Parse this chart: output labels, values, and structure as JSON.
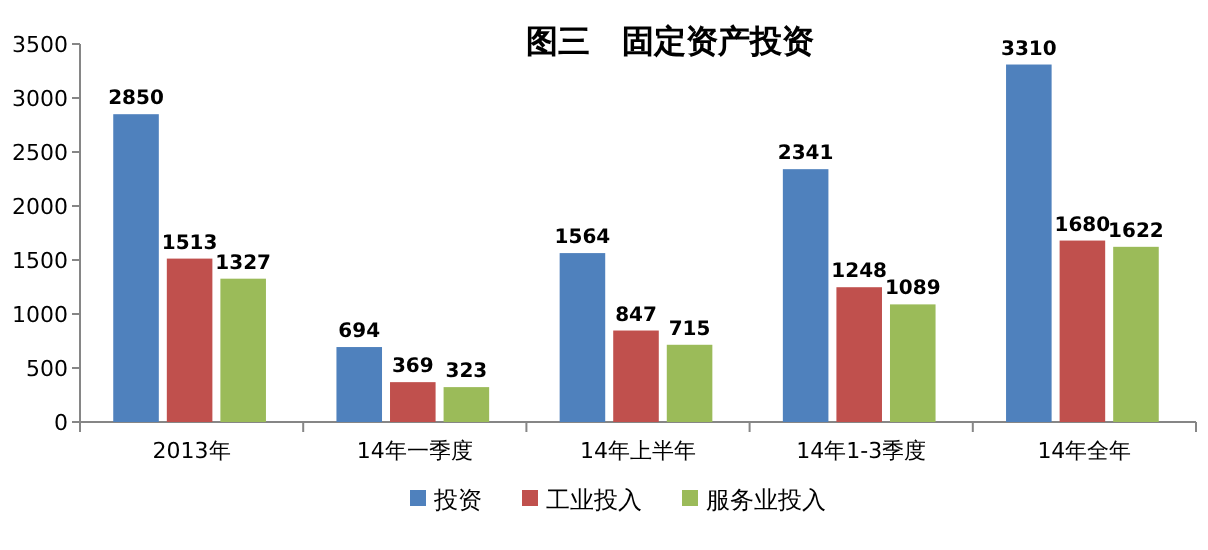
{
  "chart_data": {
    "type": "bar",
    "title": "图三　固定资产投资",
    "categories": [
      "2013年",
      "14年一季度",
      "14年上半年",
      "14年1-3季度",
      "14年全年"
    ],
    "series": [
      {
        "name": "投资",
        "color": "#4f81bd",
        "values": [
          2850,
          694,
          1564,
          2341,
          3310
        ]
      },
      {
        "name": "工业投入",
        "color": "#c0504d",
        "values": [
          1513,
          369,
          847,
          1248,
          1680
        ]
      },
      {
        "name": "服务业投入",
        "color": "#9bbb59",
        "values": [
          1327,
          323,
          715,
          1089,
          1622
        ]
      }
    ],
    "ylim": [
      0,
      3500
    ],
    "yticks": [
      0,
      500,
      1000,
      1500,
      2000,
      2500,
      3000,
      3500
    ],
    "data_labels": true,
    "legend": "bottom"
  }
}
